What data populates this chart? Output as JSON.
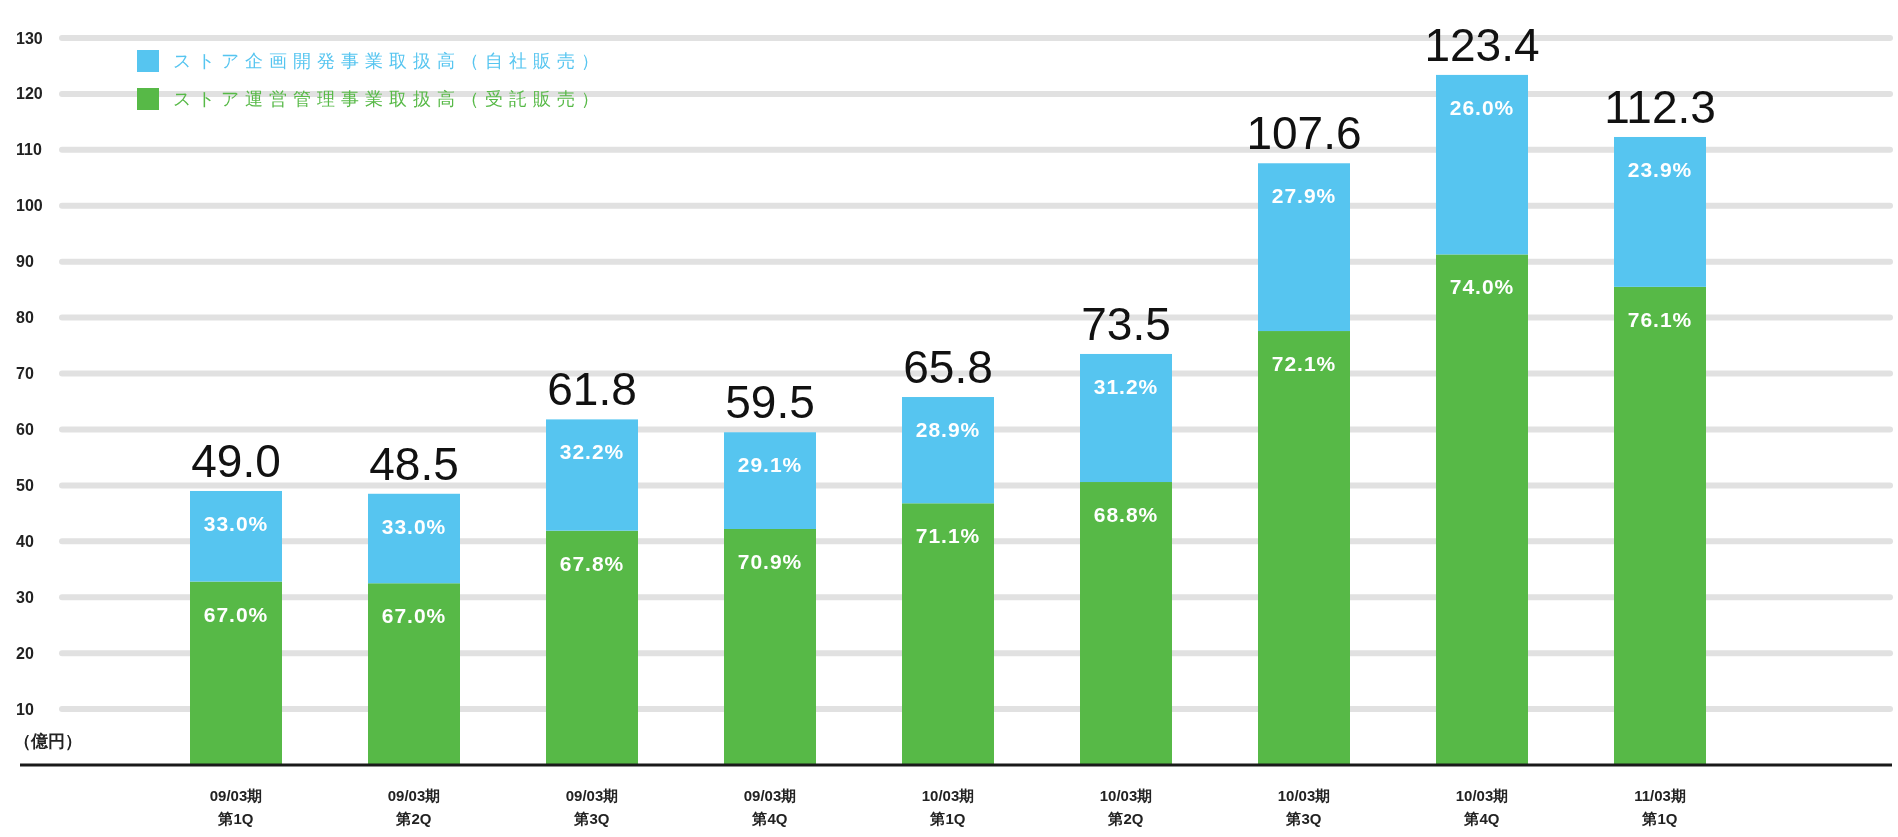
{
  "chart_data": {
    "type": "bar",
    "stacked": true,
    "categories": [
      "09/03期第1Q",
      "09/03期第2Q",
      "09/03期第3Q",
      "09/03期第4Q",
      "10/03期第1Q",
      "10/03期第2Q",
      "10/03期第3Q",
      "10/03期第4Q",
      "11/03期第1Q"
    ],
    "series": [
      {
        "name": "ストア運営管理事業取扱高（受託販売）",
        "color": "#57b947",
        "values": [
          32.8,
          32.5,
          41.9,
          42.2,
          46.8,
          50.6,
          77.6,
          91.3,
          85.5
        ]
      },
      {
        "name": "ストア企画開発事業取扱高（自社販売）",
        "color": "#56c5f0",
        "values": [
          16.2,
          16.0,
          19.9,
          17.3,
          19.0,
          22.9,
          30.0,
          32.1,
          26.8
        ]
      }
    ],
    "totals": [
      "49.0",
      "48.5",
      "61.8",
      "59.5",
      "65.8",
      "73.5",
      "107.6",
      "123.4",
      "112.3"
    ],
    "annotations": [
      {
        "text": "67.0%",
        "x": "09/03期第1Q",
        "y": 32.8
      },
      {
        "text": "33.0%",
        "x": "09/03期第1Q",
        "y": 49.0
      },
      {
        "text": "67.0%",
        "x": "09/03期第2Q",
        "y": 32.5
      },
      {
        "text": "33.0%",
        "x": "09/03期第2Q",
        "y": 48.5
      },
      {
        "text": "67.8%",
        "x": "09/03期第3Q",
        "y": 41.9
      },
      {
        "text": "32.2%",
        "x": "09/03期第3Q",
        "y": 61.8
      },
      {
        "text": "70.9%",
        "x": "09/03期第4Q",
        "y": 42.2
      },
      {
        "text": "29.1%",
        "x": "09/03期第4Q",
        "y": 59.5
      },
      {
        "text": "71.1%",
        "x": "10/03期第1Q",
        "y": 46.8
      },
      {
        "text": "28.9%",
        "x": "10/03期第1Q",
        "y": 65.8
      },
      {
        "text": "68.8%",
        "x": "10/03期第2Q",
        "y": 50.6
      },
      {
        "text": "31.2%",
        "x": "10/03期第2Q",
        "y": 73.5
      },
      {
        "text": "72.1%",
        "x": "10/03期第3Q",
        "y": 77.6
      },
      {
        "text": "27.9%",
        "x": "10/03期第3Q",
        "y": 107.6
      },
      {
        "text": "74.0%",
        "x": "10/03期第4Q",
        "y": 91.3
      },
      {
        "text": "26.0%",
        "x": "10/03期第4Q",
        "y": 123.4
      },
      {
        "text": "76.1%",
        "x": "11/03期第1Q",
        "y": 85.5
      },
      {
        "text": "23.9%",
        "x": "11/03期第1Q",
        "y": 112.3
      }
    ],
    "ylabel": "（億円）",
    "ylim": [
      0,
      130
    ],
    "yticks": [
      10,
      20,
      30,
      40,
      50,
      60,
      70,
      80,
      90,
      100,
      110,
      120,
      130
    ],
    "grid": true,
    "legend": "top left"
  }
}
